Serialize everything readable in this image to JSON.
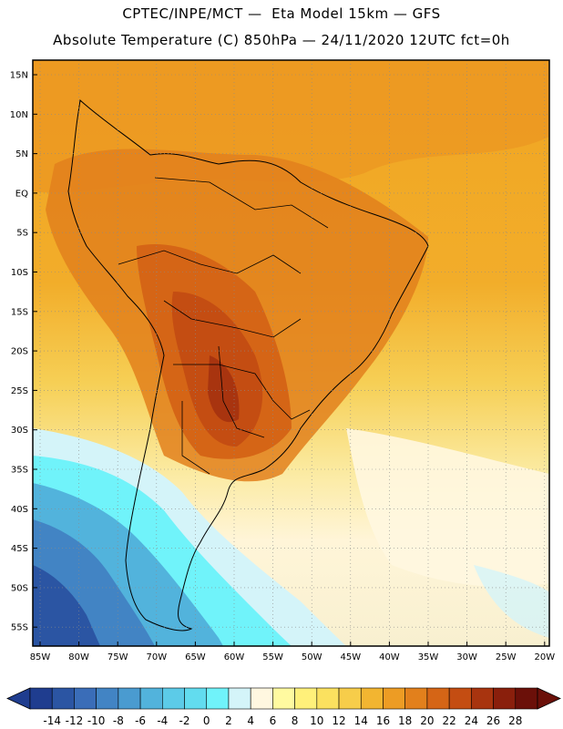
{
  "header": {
    "line1": "CPTEC/INPE/MCT —  Eta Model 15km — GFS",
    "line2": "Absolute Temperature (C) 850hPa — 24/11/2020 12UTC fct=0h"
  },
  "map": {
    "lat_labels": [
      "15N",
      "10N",
      "5N",
      "EQ",
      "5S",
      "10S",
      "15S",
      "20S",
      "25S",
      "30S",
      "35S",
      "40S",
      "45S",
      "50S",
      "55S"
    ],
    "lon_labels": [
      "85W",
      "80W",
      "75W",
      "70W",
      "65W",
      "60W",
      "55W",
      "50W",
      "45W",
      "40W",
      "35W",
      "30W",
      "25W",
      "20W"
    ]
  },
  "colorbar": {
    "labels": [
      "-14",
      "-12",
      "-10",
      "-8",
      "-6",
      "-4",
      "-2",
      "0",
      "2",
      "4",
      "6",
      "8",
      "10",
      "12",
      "14",
      "16",
      "18",
      "20",
      "22",
      "24",
      "26",
      "28"
    ],
    "colors": [
      "#1f3d8f",
      "#2b55a3",
      "#3a6db8",
      "#4284c4",
      "#4a9bd0",
      "#52b3dc",
      "#5ccbe8",
      "#62dcef",
      "#70f3fa",
      "#d4f4f9",
      "#fff7e0",
      "#fffaa0",
      "#fff07a",
      "#fbe15f",
      "#f7cd4a",
      "#f2b531",
      "#ed9c24",
      "#e2801c",
      "#d56516",
      "#c44d12",
      "#a8340f",
      "#8a1f0c",
      "#6b1009"
    ]
  }
}
